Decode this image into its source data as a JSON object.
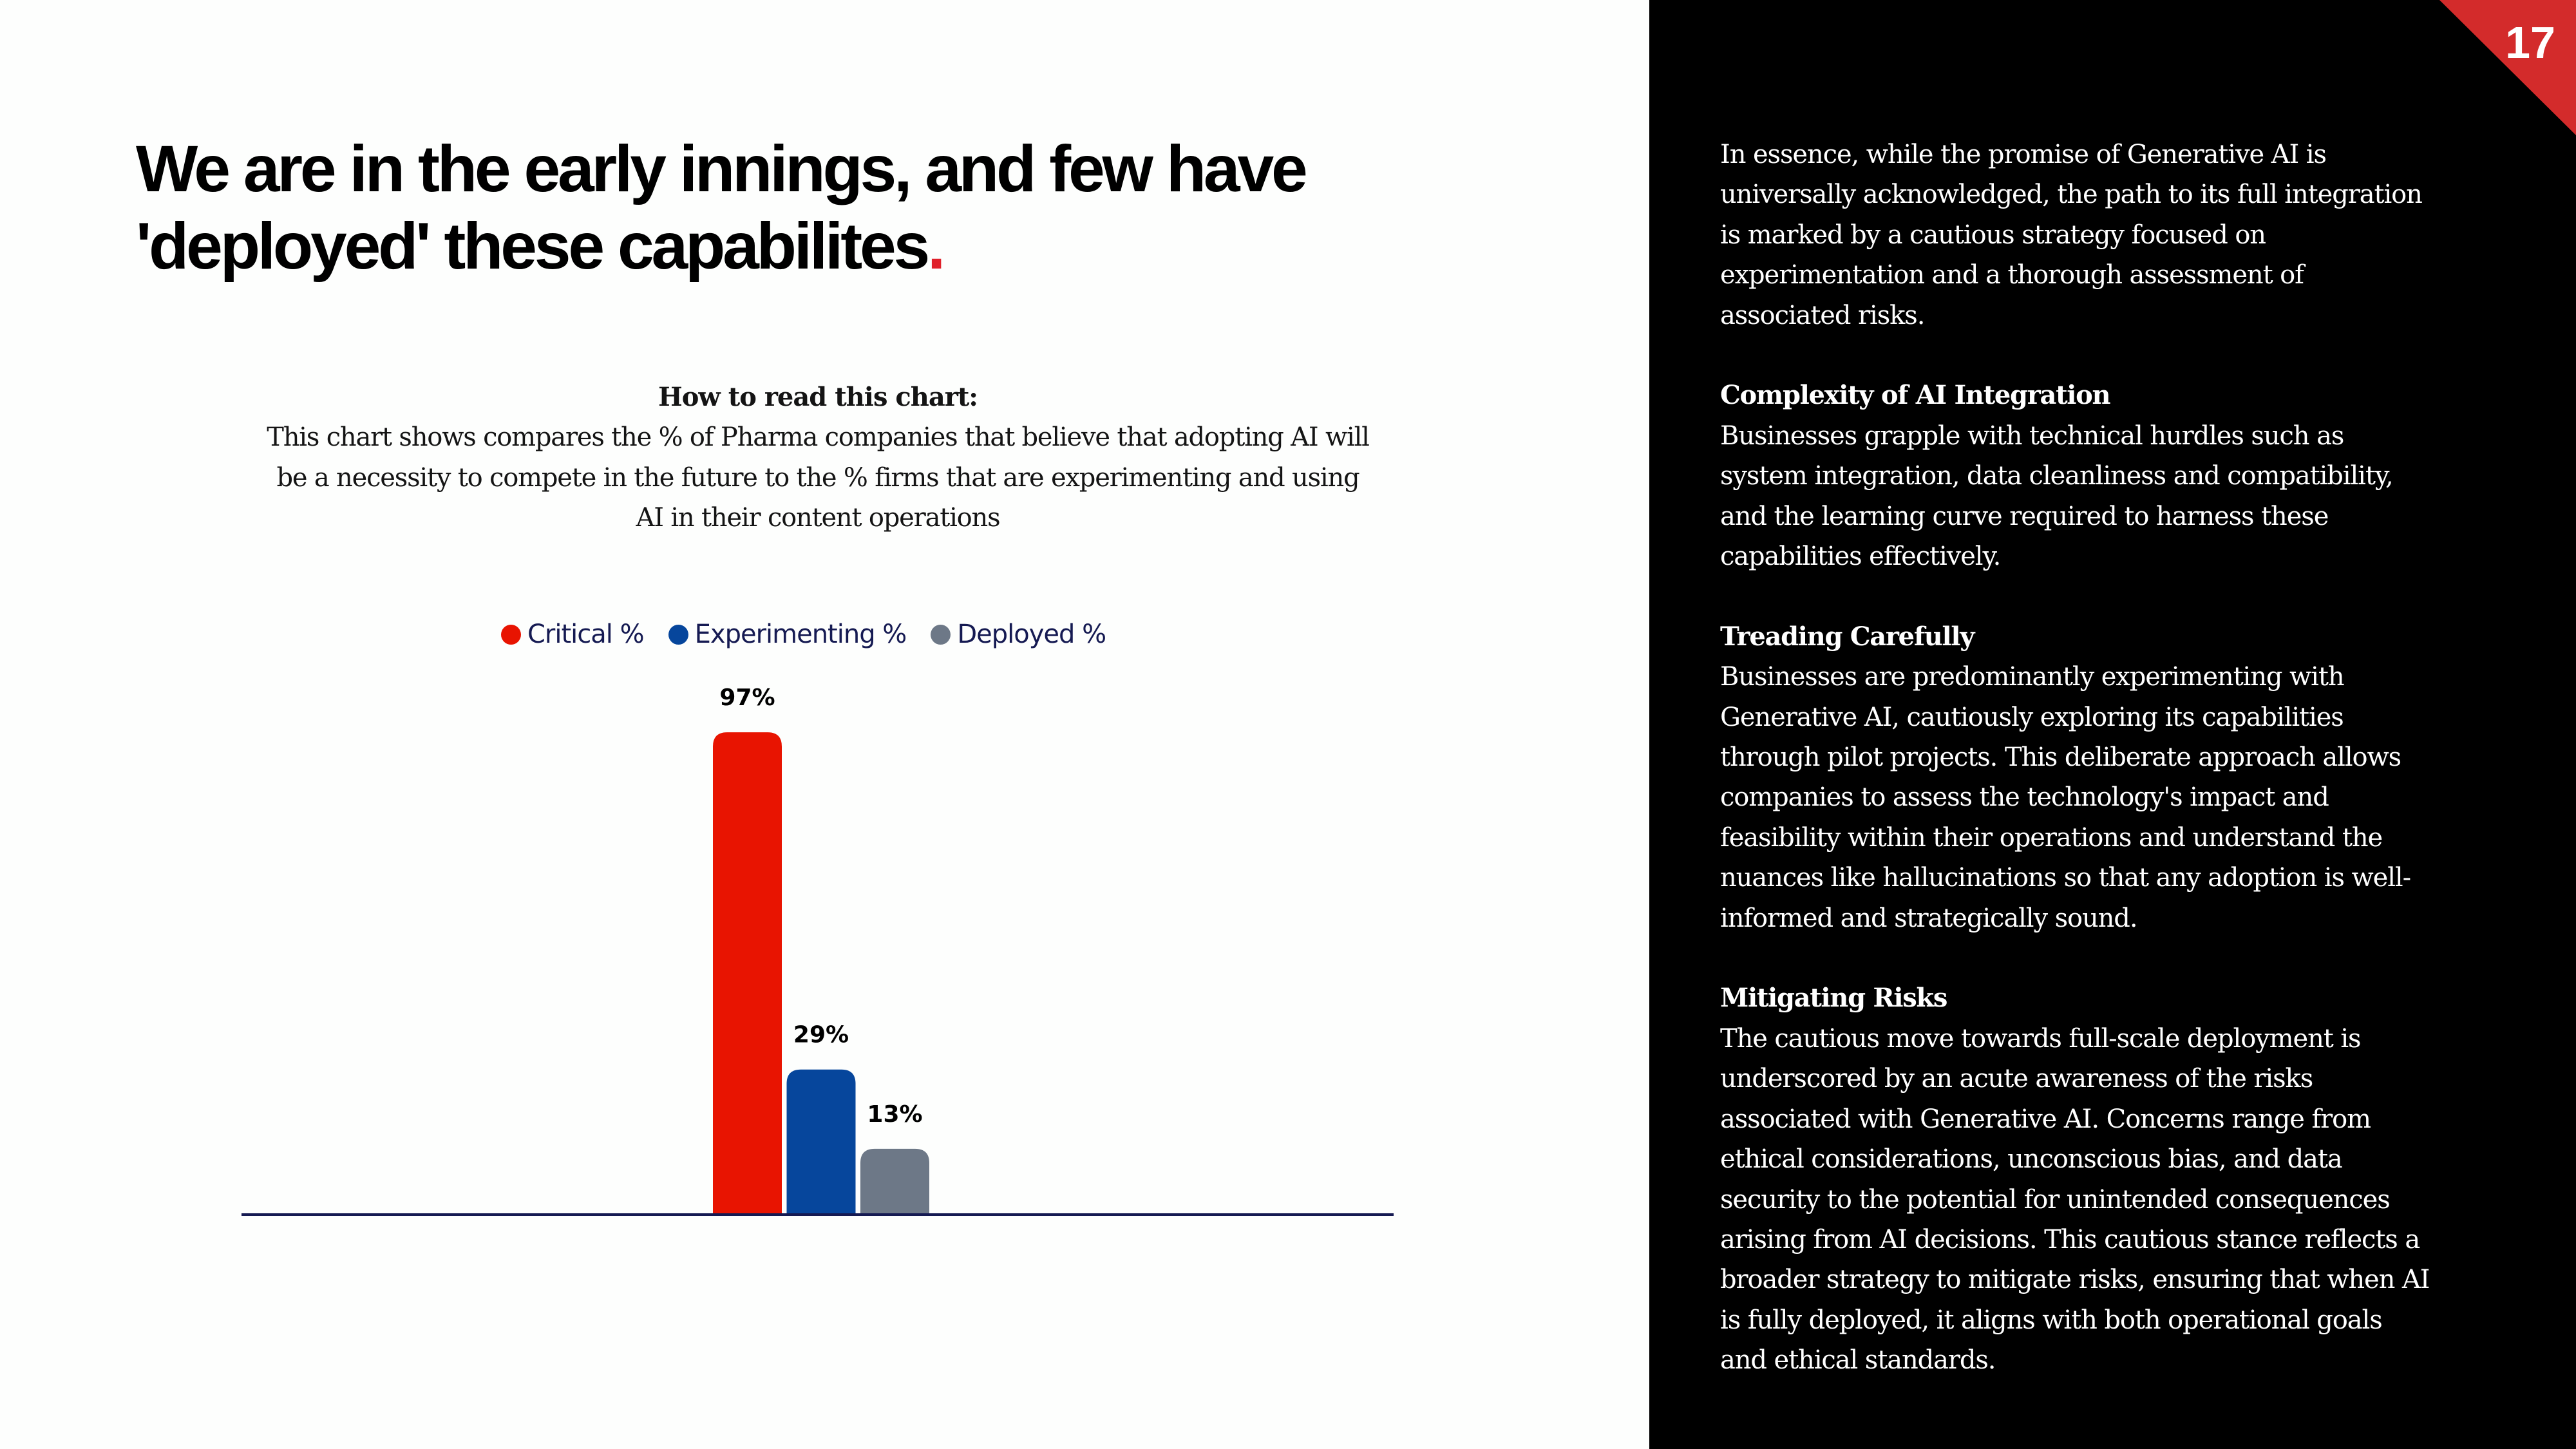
{
  "page": {
    "number": "17",
    "accent_color": "#d32b2b"
  },
  "title": {
    "line1": "We are in the early innings, and few have",
    "line2": "'deployed' these capabilites",
    "dot": "."
  },
  "chart_notes": {
    "heading": "How to read this chart:",
    "lines": [
      "This chart shows compares the % of Pharma companies  that believe that adopting AI will",
      "be a necessity to compete in the future  to the % firms that are experimenting and using",
      "AI in their content operations"
    ]
  },
  "chart_data": {
    "type": "bar",
    "title": "",
    "xlabel": "",
    "ylabel": "",
    "ylim": [
      0,
      100
    ],
    "grid": false,
    "legend_position": "top-center",
    "categories": [
      ""
    ],
    "series": [
      {
        "name": "Critical %",
        "values": [
          97
        ],
        "label": "97%",
        "color": "#e81401"
      },
      {
        "name": "Experimenting %",
        "values": [
          29
        ],
        "label": "29%",
        "color": "#06469c"
      },
      {
        "name": "Deployed %",
        "values": [
          13
        ],
        "label": "13%",
        "color": "#6d7887"
      }
    ],
    "axis_color": "#151a52"
  },
  "sidebar": {
    "paragraphs": [
      {
        "heading": "",
        "lines": [
          "In essence, while the promise of Generative AI is",
          "universally acknowledged, the path to its full integration",
          "is marked by a cautious strategy focused on",
          "experimentation and a thorough assessment of",
          "associated risks."
        ]
      },
      {
        "heading": "Complexity of AI Integration",
        "lines": [
          "Businesses grapple with technical hurdles such as",
          "system integration, data cleanliness and compatibility,",
          "and the learning curve required to harness these",
          "capabilities effectively."
        ]
      },
      {
        "heading": "Treading Carefully",
        "lines": [
          "Businesses are predominantly experimenting with",
          "Generative AI, cautiously exploring its capabilities",
          "through pilot projects. This deliberate approach allows",
          "companies to assess the technology's impact and",
          "feasibility within their operations and understand the",
          "nuances like hallucinations so that any adoption is well-",
          "informed and strategically sound."
        ]
      },
      {
        "heading": "Mitigating Risks",
        "lines": [
          "The cautious move towards full-scale deployment is",
          "underscored by an acute awareness of the risks",
          "associated with Generative AI. Concerns range from",
          "ethical considerations, unconscious bias, and data",
          "security to the potential for unintended consequences",
          "arising from AI decisions. This cautious stance reflects a",
          "broader strategy to mitigate risks, ensuring that when AI",
          "is fully deployed, it aligns with both operational goals",
          "and ethical standards."
        ]
      }
    ]
  }
}
